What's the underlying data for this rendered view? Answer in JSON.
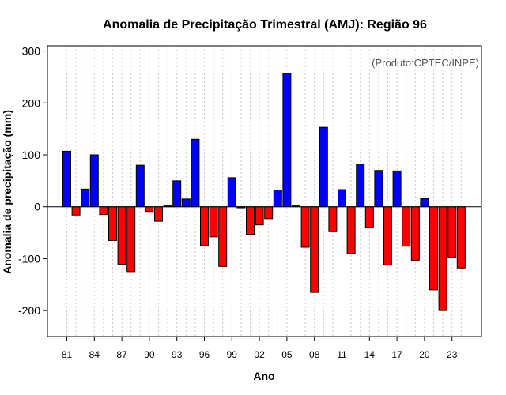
{
  "chart_data": {
    "type": "bar",
    "title": "Anomalia de Precipitação Trimestral (AMJ): Região 96",
    "credit": "(Produto:CPTEC/INPE)",
    "xlabel": "Ano",
    "ylabel": "Anomalia de precipitação (mm)",
    "ylim": [
      -250,
      310
    ],
    "yticks": [
      -200,
      -100,
      0,
      100,
      200,
      300
    ],
    "ytick_labels": [
      "-200",
      "-100",
      "0",
      "100",
      "200",
      "300"
    ],
    "xtick_years": [
      1981,
      1984,
      1987,
      1990,
      1993,
      1996,
      1999,
      2002,
      2005,
      2008,
      2011,
      2014,
      2017,
      2020,
      2023
    ],
    "xtick_labels": [
      "81",
      "84",
      "87",
      "90",
      "93",
      "96",
      "99",
      "02",
      "05",
      "08",
      "11",
      "14",
      "17",
      "20",
      "23"
    ],
    "positive_color": "#0000ff",
    "negative_color": "#ff0000",
    "years": [
      1981,
      1982,
      1983,
      1984,
      1985,
      1986,
      1987,
      1988,
      1989,
      1990,
      1991,
      1992,
      1993,
      1994,
      1995,
      1996,
      1997,
      1998,
      1999,
      2000,
      2001,
      2002,
      2003,
      2004,
      2005,
      2006,
      2007,
      2008,
      2009,
      2010,
      2011,
      2012,
      2013,
      2014,
      2015,
      2016,
      2017,
      2018,
      2019,
      2020,
      2021,
      2022,
      2023,
      2024
    ],
    "values": [
      107,
      -16,
      34,
      100,
      -15,
      -65,
      -111,
      -125,
      80,
      -9,
      -28,
      3,
      50,
      15,
      130,
      -75,
      -58,
      -115,
      56,
      -2,
      -53,
      -35,
      -23,
      32,
      257,
      3,
      -78,
      -165,
      153,
      -48,
      33,
      -90,
      82,
      -40,
      70,
      -112,
      69,
      -76,
      -103,
      16,
      -160,
      -200,
      -97,
      -118
    ]
  }
}
